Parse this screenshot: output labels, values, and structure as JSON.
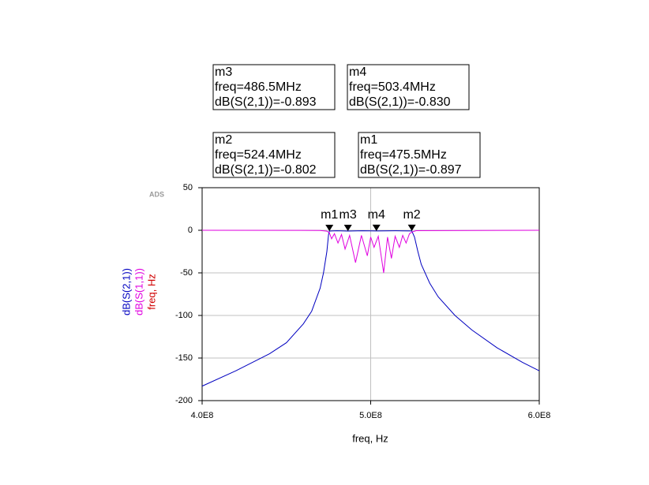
{
  "chart_data": {
    "type": "line",
    "watermark": "ADS",
    "xlabel": "freq, Hz",
    "ylabel": "freq, Hz",
    "ylabel_color": "#d00000",
    "xlim": [
      400000000,
      600000000
    ],
    "ylim": [
      -200,
      50
    ],
    "xticks": [
      {
        "value": 400000000,
        "label": "4.0E8"
      },
      {
        "value": 500000000,
        "label": "5.0E8"
      },
      {
        "value": 600000000,
        "label": "6.0E8"
      }
    ],
    "yticks": [
      -200,
      -150,
      -100,
      -50,
      0,
      50
    ],
    "grid": true,
    "series": [
      {
        "name": "dB(S(2,1))",
        "color": "#0000c0",
        "x": [
          400000000,
          420000000,
          440000000,
          450000000,
          460000000,
          465000000,
          470000000,
          472000000,
          474000000,
          475000000,
          475500000,
          480000000,
          486500000,
          495000000,
          503400000,
          515000000,
          524400000,
          526000000,
          528000000,
          530000000,
          535000000,
          540000000,
          550000000,
          560000000,
          575000000,
          590000000,
          600000000
        ],
        "values": [
          -183,
          -165,
          -145,
          -132,
          -110,
          -95,
          -68,
          -50,
          -25,
          -5,
          -0.897,
          -0.6,
          -0.893,
          -0.6,
          -0.83,
          -0.6,
          -0.802,
          -8,
          -25,
          -40,
          -62,
          -78,
          -100,
          -117,
          -138,
          -155,
          -165
        ]
      },
      {
        "name": "dB(S(1,1))",
        "color": "#e000e0",
        "x": [
          400000000,
          470000000,
          474000000,
          475500000,
          476800000,
          478500000,
          480600000,
          482700000,
          484800000,
          487500000,
          491000000,
          494500000,
          498000000,
          500000000,
          502000000,
          504500000,
          507700000,
          510000000,
          512300000,
          514500000,
          517000000,
          519000000,
          521000000,
          523000000,
          524500000,
          527000000,
          600000000
        ],
        "values": [
          0,
          -0.2,
          -1,
          -3,
          -10,
          -4,
          -15,
          -5,
          -22,
          -6,
          -38,
          -6,
          -30,
          -8,
          -20,
          -7,
          -50,
          -8,
          -33,
          -7,
          -20,
          -6,
          -15,
          -4,
          -2,
          -0.5,
          0
        ]
      }
    ],
    "markers": [
      {
        "name": "m1",
        "x": 475500000,
        "y": -0.897,
        "lines": [
          "freq=475.5MHz",
          "dB(S(2,1))=-0.897"
        ]
      },
      {
        "name": "m2",
        "x": 524400000,
        "y": -0.802,
        "lines": [
          "freq=524.4MHz",
          "dB(S(2,1))=-0.802"
        ]
      },
      {
        "name": "m3",
        "x": 486500000,
        "y": -0.893,
        "lines": [
          "freq=486.5MHz",
          "dB(S(2,1))=-0.893"
        ]
      },
      {
        "name": "m4",
        "x": 503400000,
        "y": -0.83,
        "lines": [
          "freq=503.4MHz",
          "dB(S(2,1))=-0.830"
        ]
      }
    ]
  }
}
